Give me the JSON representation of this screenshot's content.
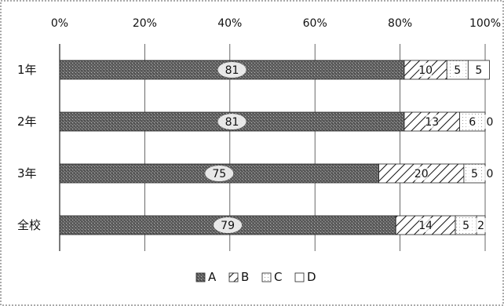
{
  "chart_data": {
    "type": "bar",
    "orientation": "horizontal",
    "stacked": "percent",
    "categories": [
      "1年",
      "2年",
      "3年",
      "全校"
    ],
    "series": [
      {
        "name": "A",
        "values": [
          81,
          81,
          75,
          79
        ],
        "value_labels": [
          "81",
          "81",
          "75",
          "79"
        ],
        "pattern": "stipple-dark",
        "color": "#6e6e6e"
      },
      {
        "name": "B",
        "values": [
          10,
          13,
          20,
          14
        ],
        "value_labels": [
          "10",
          "13",
          "20",
          "14"
        ],
        "pattern": "diagonal-hatch",
        "color": "#ffffff"
      },
      {
        "name": "C",
        "values": [
          5,
          6,
          5,
          5
        ],
        "value_labels": [
          "5",
          "6",
          "5",
          "5"
        ],
        "pattern": "light-dots",
        "color": "#ffffff"
      },
      {
        "name": "D",
        "values": [
          5,
          0,
          0,
          2
        ],
        "value_labels": [
          "5",
          "0",
          "0",
          "2"
        ],
        "pattern": "blank",
        "color": "#ffffff"
      }
    ],
    "xlim": [
      0,
      100
    ],
    "x_ticks": [
      "0%",
      "20%",
      "40%",
      "60%",
      "80%",
      "100%"
    ],
    "x_tick_values": [
      0,
      20,
      40,
      60,
      80,
      100
    ],
    "xaxis_position": "top",
    "grid": true,
    "legend_position": "bottom",
    "title": "",
    "xlabel": "",
    "ylabel": ""
  }
}
